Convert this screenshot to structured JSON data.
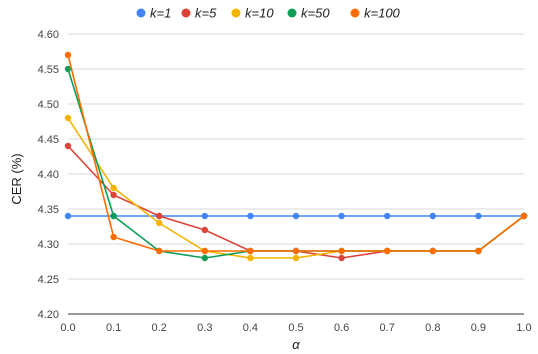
{
  "chart_data": {
    "type": "line",
    "title": "",
    "xlabel": "α",
    "ylabel": "CER (%)",
    "x": [
      0.0,
      0.1,
      0.2,
      0.3,
      0.4,
      0.5,
      0.6,
      0.7,
      0.8,
      0.9,
      1.0
    ],
    "x_tick_labels": [
      "0.0",
      "0.1",
      "0.2",
      "0.3",
      "0.4",
      "0.5",
      "0.6",
      "0.7",
      "0.8",
      "0.9",
      "1.0"
    ],
    "xlim": [
      0.0,
      1.0
    ],
    "ylim": [
      4.2,
      4.6
    ],
    "y_ticks": [
      4.2,
      4.25,
      4.3,
      4.35,
      4.4,
      4.45,
      4.5,
      4.55,
      4.6
    ],
    "y_tick_labels": [
      "4.20",
      "4.25",
      "4.30",
      "4.35",
      "4.40",
      "4.45",
      "4.50",
      "4.55",
      "4.60"
    ],
    "grid": "horizontal",
    "legend_position": "top-center",
    "series": [
      {
        "name": "k=1",
        "color": "#4285F4",
        "values": [
          4.34,
          4.34,
          4.34,
          4.34,
          4.34,
          4.34,
          4.34,
          4.34,
          4.34,
          4.34,
          4.34
        ]
      },
      {
        "name": "k=5",
        "color": "#DB4437",
        "values": [
          4.44,
          4.37,
          4.34,
          4.32,
          4.29,
          4.29,
          4.28,
          4.29,
          4.29,
          4.29,
          4.34
        ]
      },
      {
        "name": "k=10",
        "color": "#F4B400",
        "values": [
          4.48,
          4.38,
          4.33,
          4.29,
          4.28,
          4.28,
          4.29,
          4.29,
          4.29,
          4.29,
          4.34
        ]
      },
      {
        "name": "k=50",
        "color": "#0F9D58",
        "values": [
          4.55,
          4.34,
          4.29,
          4.28,
          4.29,
          4.29,
          4.29,
          4.29,
          4.29,
          4.29,
          4.34
        ]
      },
      {
        "name": "k=100",
        "color": "#FF6D01",
        "values": [
          4.57,
          4.31,
          4.29,
          4.29,
          4.29,
          4.29,
          4.29,
          4.29,
          4.29,
          4.29,
          4.34
        ]
      }
    ]
  }
}
